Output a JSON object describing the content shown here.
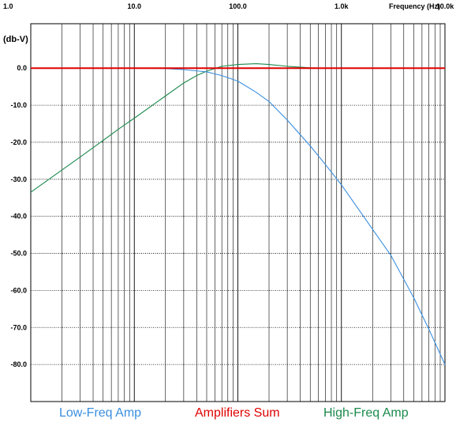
{
  "chart_data": {
    "type": "line",
    "x_axis": {
      "title": "Frequency",
      "unit": "(Hz)",
      "scale": "log",
      "range": [
        1,
        10000
      ],
      "tick_values": [
        1,
        10,
        100,
        1000,
        10000
      ],
      "tick_labels": [
        "1.0",
        "10.0",
        "100.0",
        "1.0k",
        "10.0k"
      ]
    },
    "y_axis": {
      "label": "(db-V)",
      "range": [
        -90,
        12
      ],
      "tick_values": [
        0,
        -10,
        -20,
        -30,
        -40,
        -50,
        -60,
        -70,
        -80
      ],
      "tick_labels": [
        "0.0",
        "-10.0",
        "-20.0",
        "-30.0",
        "-40.0",
        "-50.0",
        "-60.0",
        "-70.0",
        "-80.0"
      ]
    },
    "grid": true,
    "legend_position": "bottom",
    "series": [
      {
        "name": "Low-Freq Amp",
        "color": "#3a8fe0",
        "x": [
          1,
          10,
          20,
          30,
          50,
          70,
          100,
          150,
          200,
          300,
          500,
          700,
          1000,
          2000,
          3000,
          5000,
          7000,
          10000
        ],
        "y": [
          0,
          0,
          -0.1,
          -0.4,
          -1,
          -2,
          -3.5,
          -6.5,
          -9,
          -14,
          -21,
          -26,
          -31.5,
          -43.5,
          -50.5,
          -62,
          -70.5,
          -80
        ]
      },
      {
        "name": "Amplifiers Sum",
        "color": "#e00000",
        "x": [
          1,
          10000
        ],
        "y": [
          0,
          0
        ]
      },
      {
        "name": "High-Freq Amp",
        "color": "#1b8a4c",
        "x": [
          1,
          2,
          3,
          5,
          7,
          10,
          15,
          20,
          30,
          40,
          50,
          70,
          100,
          150,
          200,
          300,
          500,
          700,
          1000,
          10000
        ],
        "y": [
          -33.5,
          -27.5,
          -24,
          -19.5,
          -16.5,
          -13.5,
          -10,
          -7.5,
          -4,
          -2,
          -0.8,
          0.5,
          1,
          1.2,
          1,
          0.5,
          0.1,
          0,
          0,
          0
        ]
      }
    ]
  }
}
